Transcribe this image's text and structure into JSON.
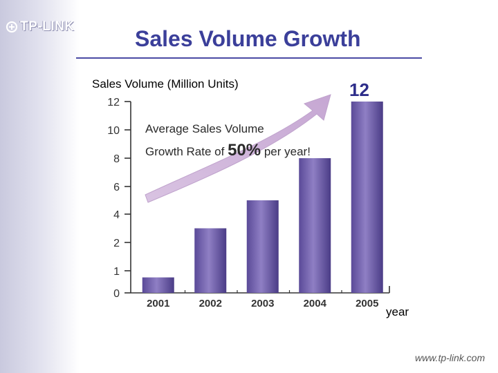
{
  "brand": {
    "logo_text": "TP-LINK",
    "url": "www.tp-link.com"
  },
  "title": "Sales Volume Growth",
  "colors": {
    "title": "#3b3f9a",
    "bar": "#6a5aa6",
    "arrow": "#cfb5d8"
  },
  "annotation": {
    "line1": "Average Sales Volume",
    "line2_prefix": "Growth Rate of",
    "line2_rate": "50%",
    "line2_suffix": "per year!"
  },
  "chart_data": {
    "type": "bar",
    "categories": [
      "2001",
      "2002",
      "2003",
      "2004",
      "2005"
    ],
    "values": [
      0.7,
      3,
      5,
      8,
      12
    ],
    "ylabel": "Sales Volume (Million Units)",
    "xlabel": "year",
    "yticks": [
      0,
      1,
      2,
      4,
      6,
      8,
      10,
      12
    ],
    "ylim": [
      0,
      12
    ],
    "highlight_label": "12",
    "grid": false,
    "legend": "none"
  }
}
